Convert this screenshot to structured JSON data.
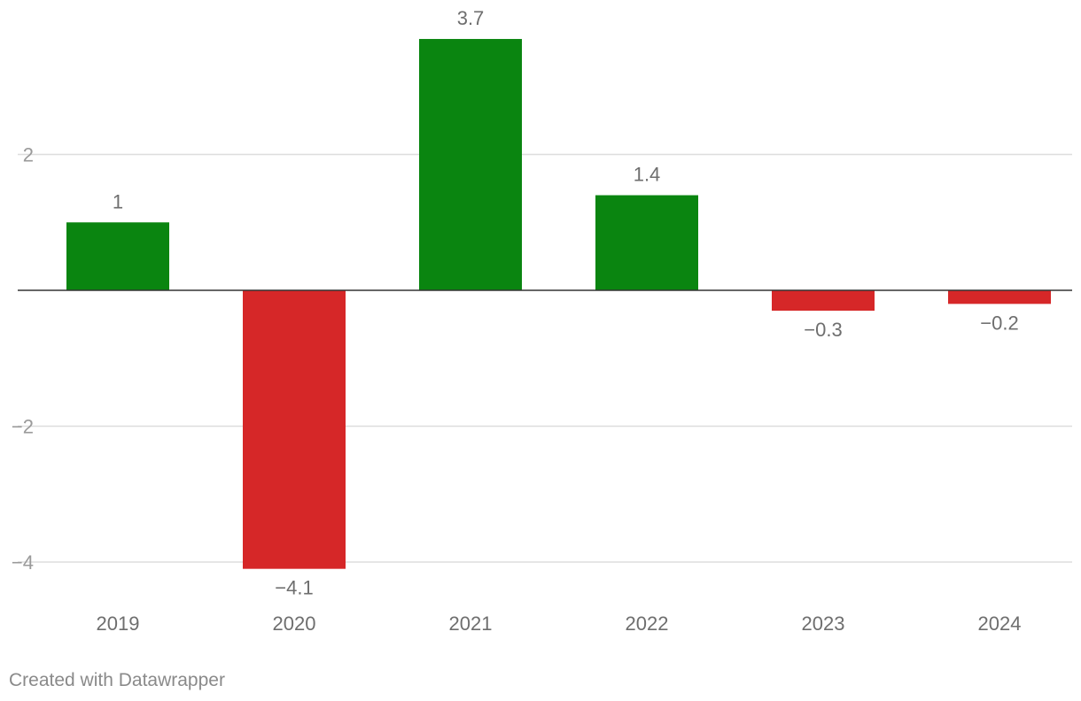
{
  "chart_data": {
    "type": "bar",
    "categories": [
      "2019",
      "2020",
      "2021",
      "2022",
      "2023",
      "2024"
    ],
    "values": [
      1,
      -4.1,
      3.7,
      1.4,
      -0.3,
      -0.2
    ],
    "value_labels": [
      "1",
      "−4.1",
      "3.7",
      "1.4",
      "−0.3",
      "−0.2"
    ],
    "y_ticks": [
      2,
      -2,
      -4
    ],
    "y_tick_labels": [
      "2",
      "−2",
      "−4"
    ],
    "ylim": [
      -4.6,
      3.7
    ],
    "grid": true,
    "colors": {
      "positive": "#0a8510",
      "negative": "#d62728"
    },
    "title": "",
    "xlabel": "",
    "ylabel": ""
  },
  "footer": {
    "credit": "Created with Datawrapper"
  }
}
